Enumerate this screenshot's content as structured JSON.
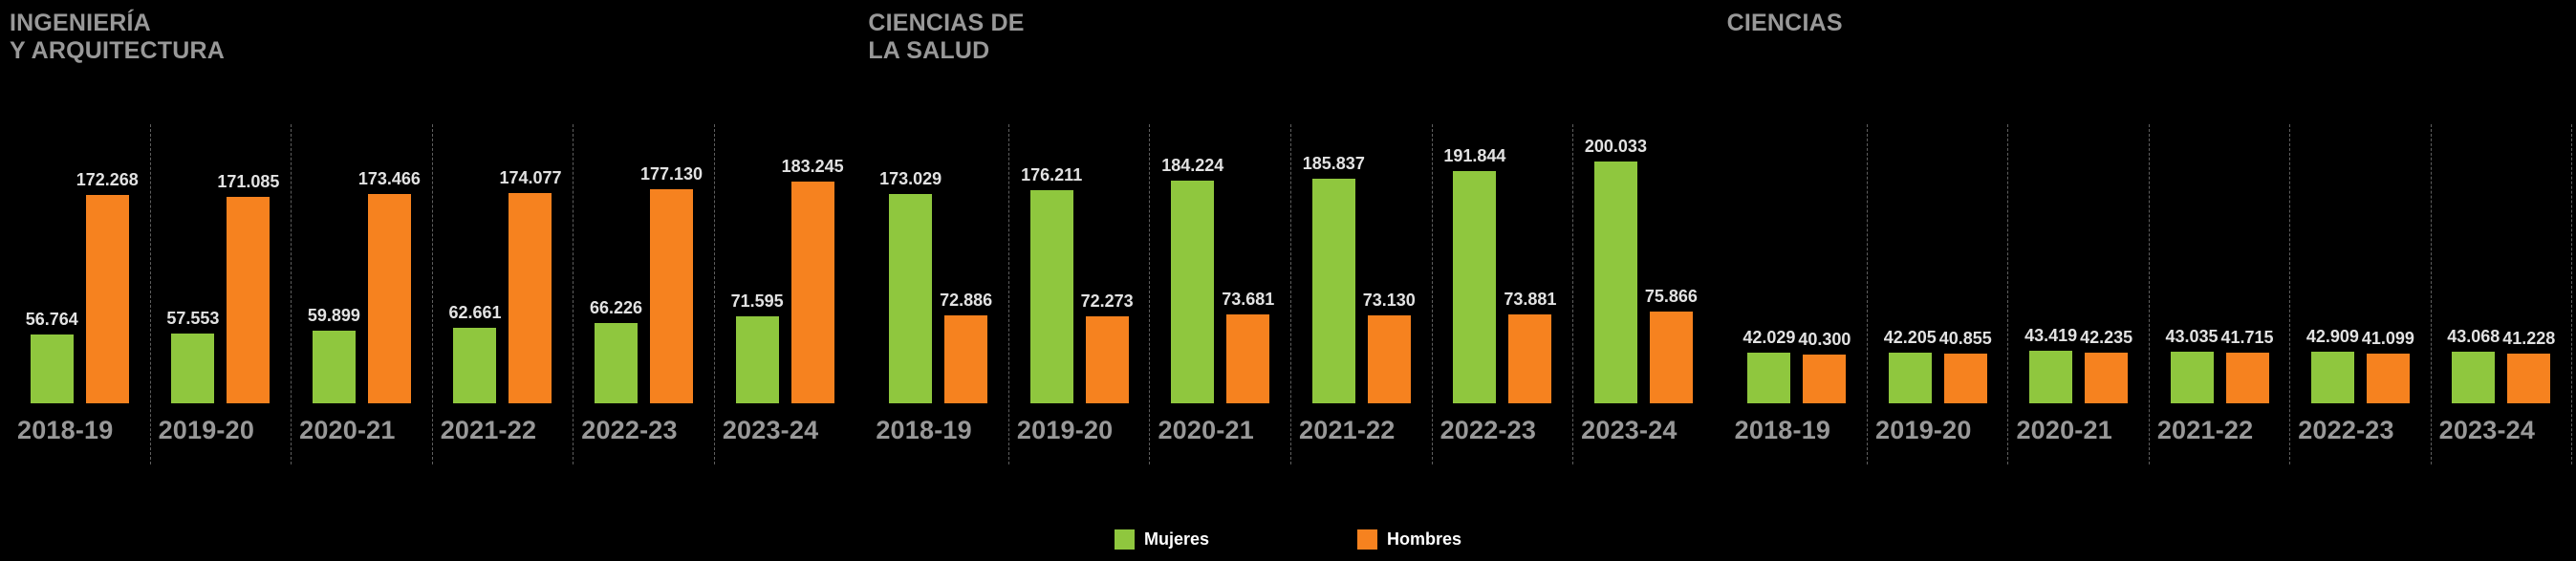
{
  "legend": {
    "mujeres_label": "Mujeres",
    "hombres_label": "Hombres"
  },
  "colors": {
    "background": "#000000",
    "mujeres": "#8FC73E",
    "hombres": "#F6821F",
    "value_label": "#E2E2E2",
    "axis_label": "#989898",
    "separator": "#5F5F5F"
  },
  "chart_data": [
    {
      "type": "bar",
      "id": "ingenieria-y-arquitectura",
      "title": "INGENIERÍA Y ARQUITECTURA",
      "title_lines": [
        "INGENIERÍA",
        "Y ARQUITECTURA"
      ],
      "categories": [
        "2018-19",
        "2019-20",
        "2020-21",
        "2021-22",
        "2022-23",
        "2023-24"
      ],
      "ylim": [
        0,
        200033
      ],
      "grid": false,
      "legend_position": "bottom-center",
      "series": [
        {
          "name": "Mujeres",
          "values": [
            56764,
            57553,
            59899,
            62661,
            66226,
            71595
          ],
          "labels": [
            "56.764",
            "57.553",
            "59.899",
            "62.661",
            "66.226",
            "71.595"
          ]
        },
        {
          "name": "Hombres",
          "values": [
            172268,
            171085,
            173466,
            174077,
            177130,
            183245
          ],
          "labels": [
            "172.268",
            "171.085",
            "173.466",
            "174.077",
            "177.130",
            "183.245"
          ]
        }
      ]
    },
    {
      "type": "bar",
      "id": "ciencias-de-la-salud",
      "title": "CIENCIAS DE LA SALUD",
      "title_lines": [
        "CIENCIAS DE",
        "LA SALUD"
      ],
      "categories": [
        "2018-19",
        "2019-20",
        "2020-21",
        "2021-22",
        "2022-23",
        "2023-24"
      ],
      "ylim": [
        0,
        200033
      ],
      "grid": false,
      "legend_position": "bottom-center",
      "series": [
        {
          "name": "Mujeres",
          "values": [
            173029,
            176211,
            184224,
            185837,
            191844,
            200033
          ],
          "labels": [
            "173.029",
            "176.211",
            "184.224",
            "185.837",
            "191.844",
            "200.033"
          ]
        },
        {
          "name": "Hombres",
          "values": [
            72886,
            72273,
            73681,
            73130,
            73881,
            75866
          ],
          "labels": [
            "72.886",
            "72.273",
            "73.681",
            "73.130",
            "73.881",
            "75.866"
          ]
        }
      ]
    },
    {
      "type": "bar",
      "id": "ciencias",
      "title": "CIENCIAS",
      "title_lines": [
        "CIENCIAS"
      ],
      "categories": [
        "2018-19",
        "2019-20",
        "2020-21",
        "2021-22",
        "2022-23",
        "2023-24"
      ],
      "ylim": [
        0,
        200033
      ],
      "grid": false,
      "legend_position": "bottom-center",
      "series": [
        {
          "name": "Mujeres",
          "values": [
            42029,
            42205,
            43419,
            43035,
            42909,
            43068
          ],
          "labels": [
            "42.029",
            "42.205",
            "43.419",
            "43.035",
            "42.909",
            "43.068"
          ]
        },
        {
          "name": "Hombres",
          "values": [
            40300,
            40855,
            42235,
            41715,
            41099,
            41228
          ],
          "labels": [
            "40.300",
            "40.855",
            "42.235",
            "41.715",
            "41.099",
            "41.228"
          ]
        }
      ]
    }
  ]
}
